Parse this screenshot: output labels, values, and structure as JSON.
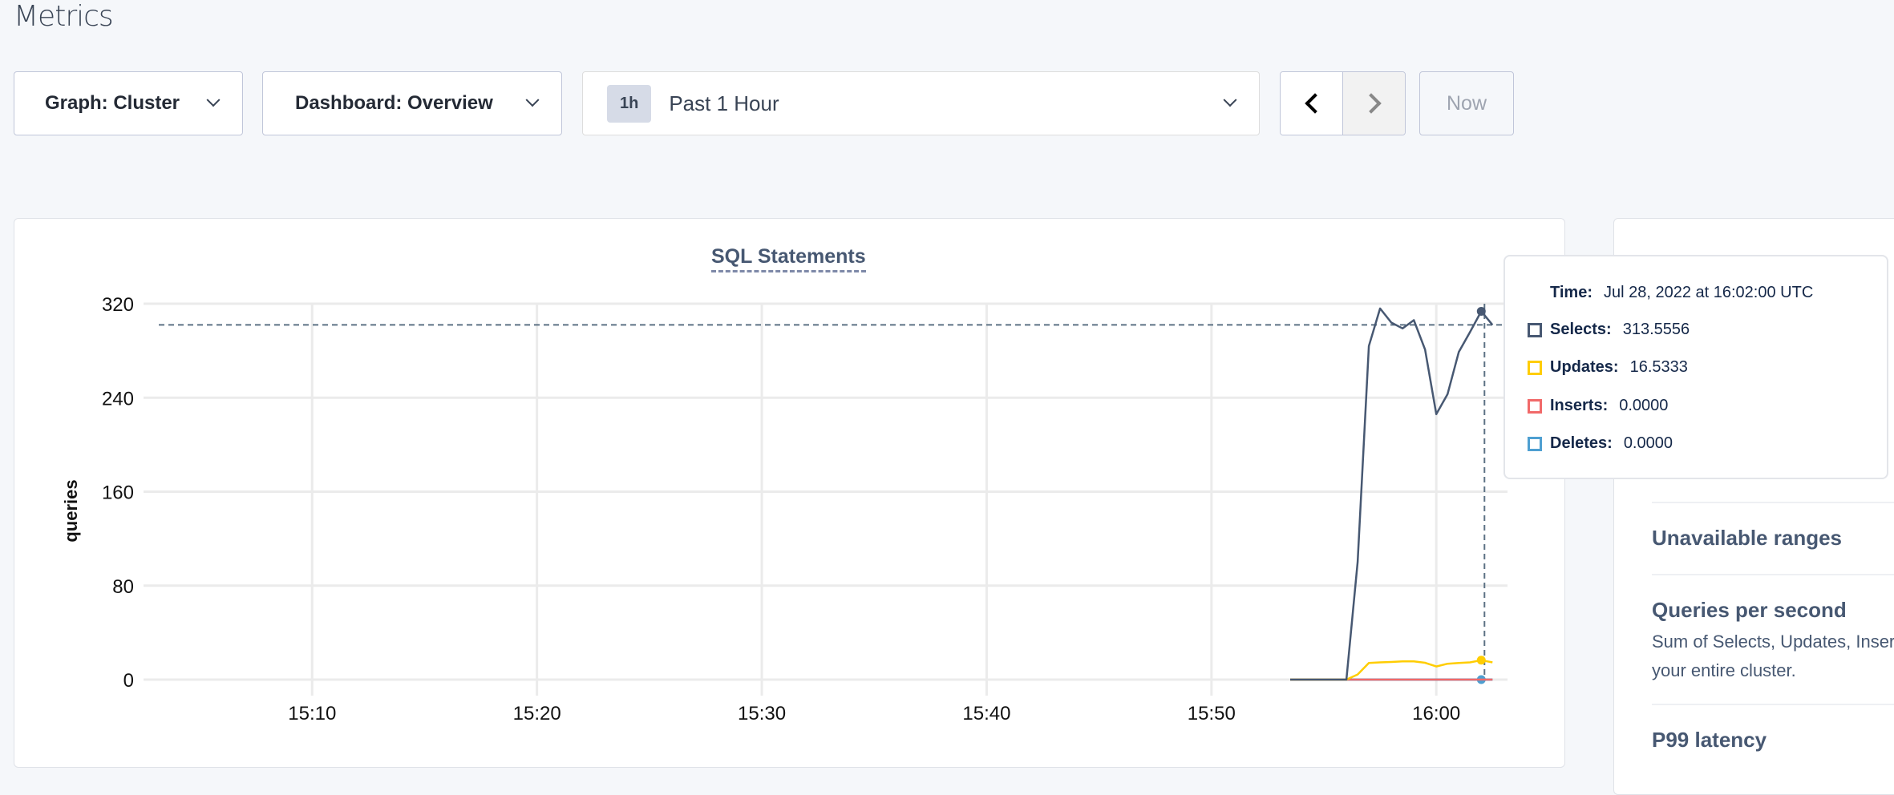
{
  "page": {
    "title": "Metrics"
  },
  "controls": {
    "graph_select": "Graph: Cluster",
    "dashboard_select": "Dashboard: Overview",
    "time_badge": "1h",
    "time_label": "Past 1 Hour",
    "now_label": "Now",
    "icons": {
      "prev": "chevron-left-icon",
      "next": "chevron-right-icon",
      "dropdown": "chevron-down-icon"
    }
  },
  "side_panel": {
    "sections": [
      {
        "title": "Unavailable ranges",
        "description": ""
      },
      {
        "title": "Queries per second",
        "description_lines": [
          "Sum of Selects, Updates, Inser",
          "your entire cluster."
        ]
      },
      {
        "title": "P99 latency",
        "description": ""
      }
    ]
  },
  "tooltip": {
    "time_label": "Time:",
    "time_value": "Jul 28, 2022 at 16:02:00 UTC",
    "rows": [
      {
        "label": "Selects:",
        "value": "313.5556",
        "color": "#475872"
      },
      {
        "label": "Updates:",
        "value": "16.5333",
        "color": "#ffcd02"
      },
      {
        "label": "Inserts:",
        "value": "0.0000",
        "color": "#f16969"
      },
      {
        "label": "Deletes:",
        "value": "0.0000",
        "color": "#4e9fd1"
      }
    ]
  },
  "chart_data": {
    "type": "line",
    "title": "SQL Statements",
    "xlabel": "",
    "ylabel": "queries",
    "xlim": [
      "15:02:30",
      "16:03:10"
    ],
    "ylim": [
      0,
      320
    ],
    "x_ticks": [
      "15:10",
      "15:20",
      "15:30",
      "15:40",
      "15:50",
      "16:00"
    ],
    "y_ticks": [
      0,
      80,
      160,
      240,
      320
    ],
    "grid": true,
    "legend": "none",
    "hover_time": "16:02:00",
    "x": [
      "15:53:30",
      "15:54:00",
      "15:54:30",
      "15:55:00",
      "15:55:30",
      "15:56:00",
      "15:56:30",
      "15:57:00",
      "15:57:30",
      "15:58:00",
      "15:58:30",
      "15:59:00",
      "15:59:30",
      "16:00:00",
      "16:00:30",
      "16:01:00",
      "16:01:30",
      "16:02:00",
      "16:02:30"
    ],
    "series": [
      {
        "name": "Selects",
        "color": "#475872",
        "values": [
          0,
          0,
          0,
          0,
          0,
          0,
          100,
          284,
          316,
          304,
          299,
          306,
          281,
          226,
          243,
          279,
          296,
          313.5556,
          302
        ]
      },
      {
        "name": "Updates",
        "color": "#ffcd02",
        "values": [
          0,
          0,
          0,
          0,
          0,
          0,
          4.4,
          14.2,
          14.7,
          15,
          15.5,
          15.5,
          14.3,
          11.2,
          13.5,
          14.2,
          14.7,
          16.5333,
          14.7
        ]
      },
      {
        "name": "Inserts",
        "color": "#f16969",
        "values": [
          0,
          0,
          0,
          0,
          0,
          0,
          0,
          0,
          0,
          0,
          0,
          0,
          0,
          0,
          0,
          0,
          0,
          0,
          0
        ]
      },
      {
        "name": "Deletes",
        "color": "#4e9fd1",
        "values": [
          0,
          0,
          0,
          0,
          0,
          0,
          0,
          0,
          0,
          0,
          0,
          0,
          0,
          0,
          0,
          0,
          0,
          0,
          0
        ]
      }
    ]
  }
}
